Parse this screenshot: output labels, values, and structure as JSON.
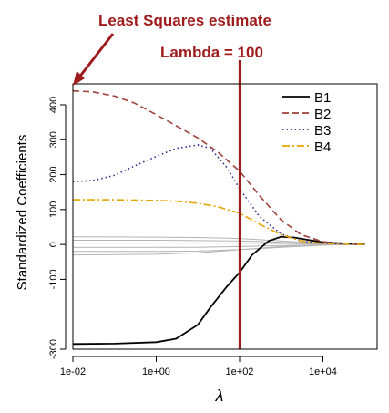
{
  "chart_data": {
    "type": "line",
    "title": "",
    "xlabel": "λ",
    "ylabel": "Standardized Coefficients",
    "x_scale": "log10",
    "xlim": [
      0.01,
      200000
    ],
    "ylim": [
      -300,
      460
    ],
    "x_ticks": [
      {
        "value": 0.01,
        "label": "1e-02"
      },
      {
        "value": 1,
        "label": "1e+00"
      },
      {
        "value": 100,
        "label": "1e+02"
      },
      {
        "value": 10000,
        "label": "1e+04"
      }
    ],
    "y_ticks": [
      {
        "value": -300,
        "label": "-300"
      },
      {
        "value": -100,
        "label": "-100"
      },
      {
        "value": 0,
        "label": "0"
      },
      {
        "value": 100,
        "label": "100"
      },
      {
        "value": 200,
        "label": "200"
      },
      {
        "value": 300,
        "label": "300"
      },
      {
        "value": 400,
        "label": "400"
      }
    ],
    "legend_position": "top-right",
    "series": [
      {
        "name": "B1",
        "color": "#000000",
        "dash": "solid",
        "x": [
          0.01,
          0.1,
          1,
          3,
          10,
          20,
          50,
          100,
          200,
          500,
          1000,
          2000,
          5000,
          10000,
          50000,
          100000
        ],
        "y": [
          -285,
          -284,
          -280,
          -270,
          -230,
          -180,
          -120,
          -80,
          -30,
          10,
          22,
          20,
          12,
          6,
          2,
          1
        ]
      },
      {
        "name": "B2",
        "color": "#a0413a",
        "dash": "dashed",
        "x": [
          0.01,
          0.03,
          0.1,
          0.3,
          1,
          3,
          10,
          30,
          100,
          300,
          1000,
          3000,
          10000,
          30000,
          100000
        ],
        "y": [
          440,
          437,
          425,
          405,
          372,
          340,
          305,
          265,
          210,
          140,
          70,
          28,
          8,
          2,
          0
        ]
      },
      {
        "name": "B3",
        "color": "#2b2b8c",
        "dash": "dotted",
        "x": [
          0.01,
          0.03,
          0.1,
          0.3,
          1,
          3,
          10,
          20,
          50,
          100,
          300,
          1000,
          3000,
          10000,
          100000
        ],
        "y": [
          180,
          183,
          198,
          225,
          252,
          275,
          285,
          275,
          220,
          160,
          80,
          30,
          10,
          3,
          0
        ]
      },
      {
        "name": "B4",
        "color": "#e6a500",
        "dash": "dashdot",
        "x": [
          0.01,
          0.1,
          1,
          3,
          10,
          30,
          100,
          300,
          1000,
          3000,
          10000,
          100000
        ],
        "y": [
          128,
          128,
          126,
          124,
          118,
          108,
          90,
          58,
          28,
          10,
          3,
          0
        ]
      }
    ],
    "other_series": {
      "color": "#b3b3b3",
      "lines": [
        {
          "x": [
            0.01,
            1,
            10,
            100,
            1000,
            10000,
            100000
          ],
          "y": [
            22,
            21,
            20,
            17,
            10,
            3,
            0
          ]
        },
        {
          "x": [
            0.01,
            1,
            10,
            100,
            1000,
            10000,
            100000
          ],
          "y": [
            12,
            12,
            11,
            10,
            6,
            2,
            0
          ]
        },
        {
          "x": [
            0.01,
            1,
            10,
            100,
            1000,
            10000,
            100000
          ],
          "y": [
            4,
            4,
            4,
            4,
            3,
            1,
            0
          ]
        },
        {
          "x": [
            0.01,
            1,
            10,
            100,
            1000,
            10000,
            100000
          ],
          "y": [
            -8,
            -8,
            -8,
            -6,
            -3,
            -1,
            0
          ]
        },
        {
          "x": [
            0.01,
            1,
            10,
            100,
            1000,
            10000,
            100000
          ],
          "y": [
            -20,
            -20,
            -19,
            -15,
            -8,
            -2,
            0
          ]
        },
        {
          "x": [
            0.01,
            1,
            10,
            100,
            1000,
            10000,
            100000
          ],
          "y": [
            -30,
            -28,
            -24,
            -15,
            -6,
            -1,
            0
          ]
        }
      ]
    },
    "vline": {
      "x": 100,
      "color": "#a01c1c"
    },
    "annotations": [
      {
        "text": "Least Squares estimate",
        "color": "#a01c1c"
      },
      {
        "text": "Lambda = 100",
        "color": "#a01c1c"
      }
    ]
  }
}
